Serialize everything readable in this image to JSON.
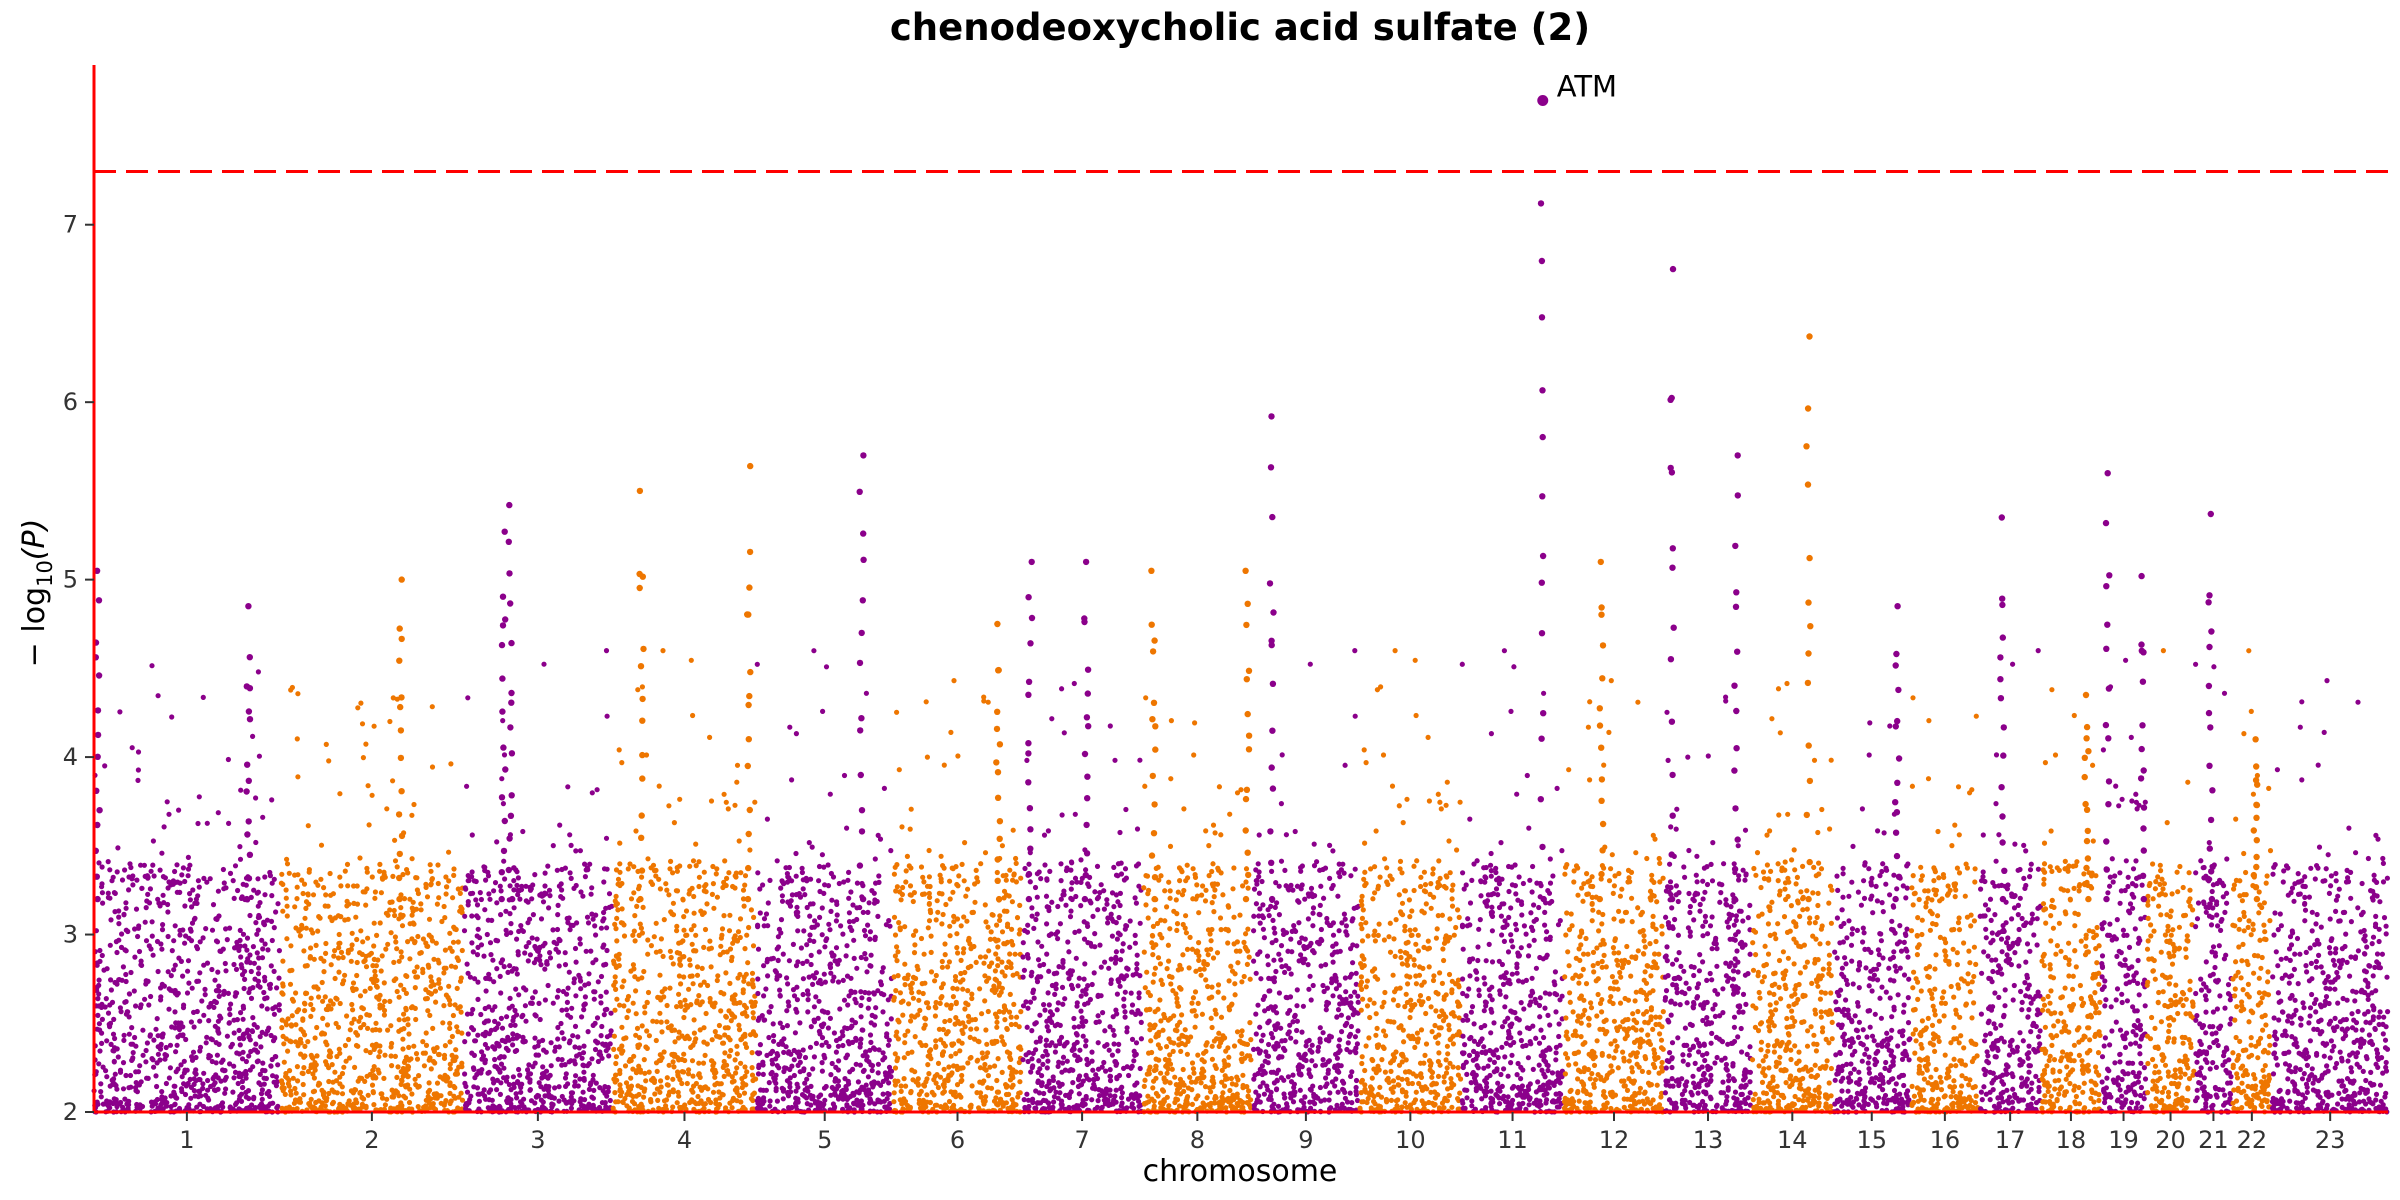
{
  "chart_data": {
    "type": "scatter",
    "subtype": "manhattan",
    "title": "chenodeoxycholic acid sulfate (2)",
    "xlabel": "chromosome",
    "ylabel_prefix": "− log",
    "ylabel_sub": "10",
    "ylabel_suffix": "(P)",
    "ylim": [
      2,
      7.9
    ],
    "yticks": [
      2,
      3,
      4,
      5,
      6,
      7
    ],
    "grid": false,
    "significance_threshold": 7.3,
    "colors": {
      "odd": "#8B008B",
      "even": "#EE7600",
      "threshold": "#FF0000",
      "axis": "#FF0000"
    },
    "chromosomes": [
      {
        "label": "1",
        "length": 249
      },
      {
        "label": "2",
        "length": 243
      },
      {
        "label": "3",
        "length": 198
      },
      {
        "label": "4",
        "length": 191
      },
      {
        "label": "5",
        "length": 181
      },
      {
        "label": "6",
        "length": 171
      },
      {
        "label": "7",
        "length": 159
      },
      {
        "label": "8",
        "length": 146
      },
      {
        "label": "9",
        "length": 141
      },
      {
        "label": "10",
        "length": 135
      },
      {
        "label": "11",
        "length": 135
      },
      {
        "label": "12",
        "length": 133
      },
      {
        "label": "13",
        "length": 115
      },
      {
        "label": "14",
        "length": 107
      },
      {
        "label": "15",
        "length": 102
      },
      {
        "label": "16",
        "length": 90
      },
      {
        "label": "17",
        "length": 81
      },
      {
        "label": "18",
        "length": 78
      },
      {
        "label": "19",
        "length": 59
      },
      {
        "label": "20",
        "length": 63
      },
      {
        "label": "21",
        "length": 48
      },
      {
        "label": "22",
        "length": 51
      },
      {
        "label": "23",
        "length": 155
      }
    ],
    "top_hits": [
      {
        "chr": "1",
        "pos": 5,
        "p": 5.05
      },
      {
        "chr": "1",
        "pos": 207,
        "p": 4.85
      },
      {
        "chr": "2",
        "pos": 160,
        "p": 5.0
      },
      {
        "chr": "3",
        "pos": 53,
        "p": 5.27
      },
      {
        "chr": "3",
        "pos": 62,
        "p": 5.42
      },
      {
        "chr": "4",
        "pos": 38,
        "p": 5.5
      },
      {
        "chr": "4",
        "pos": 182,
        "p": 5.64
      },
      {
        "chr": "5",
        "pos": 140,
        "p": 5.7
      },
      {
        "chr": "6",
        "pos": 140,
        "p": 4.75
      },
      {
        "chr": "7",
        "pos": 10,
        "p": 5.1
      },
      {
        "chr": "7",
        "pos": 85,
        "p": 5.1
      },
      {
        "chr": "8",
        "pos": 14,
        "p": 5.05
      },
      {
        "chr": "8",
        "pos": 140,
        "p": 5.05
      },
      {
        "chr": "9",
        "pos": 25,
        "p": 5.92
      },
      {
        "chr": "11",
        "pos": 108,
        "p": 7.12
      },
      {
        "chr": "12",
        "pos": 50,
        "p": 5.1
      },
      {
        "chr": "13",
        "pos": 10,
        "p": 6.75
      },
      {
        "chr": "13",
        "pos": 95,
        "p": 5.7
      },
      {
        "chr": "14",
        "pos": 75,
        "p": 6.37
      },
      {
        "chr": "15",
        "pos": 85,
        "p": 4.85
      },
      {
        "chr": "17",
        "pos": 30,
        "p": 5.35
      },
      {
        "chr": "18",
        "pos": 60,
        "p": 4.35
      },
      {
        "chr": "19",
        "pos": 8,
        "p": 5.6
      },
      {
        "chr": "19",
        "pos": 55,
        "p": 5.02
      },
      {
        "chr": "21",
        "pos": 20,
        "p": 5.37
      },
      {
        "chr": "22",
        "pos": 30,
        "p": 4.1
      }
    ],
    "annotations": [
      {
        "label": "ATM",
        "chr": "11",
        "pos": 108,
        "p": 7.7
      }
    ]
  }
}
